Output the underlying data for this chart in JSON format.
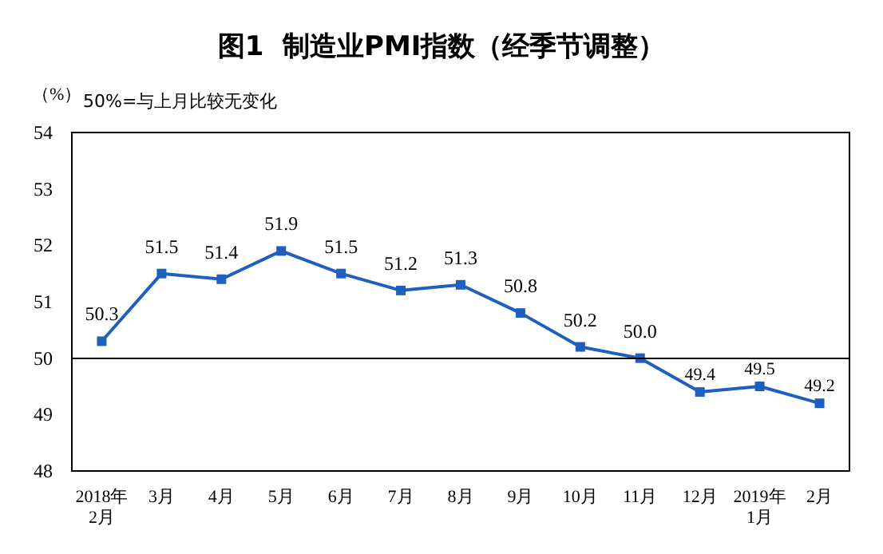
{
  "chart_data": {
    "type": "line",
    "title": "图1  制造业PMI指数（经季节调整）",
    "ylabel": "（%）",
    "annotations": [
      "50%=与上月比较无变化"
    ],
    "categories": [
      "2018年\n2月",
      "3月",
      "4月",
      "5月",
      "6月",
      "7月",
      "8月",
      "9月",
      "10月",
      "11月",
      "12月",
      "2019年\n1月",
      "2月"
    ],
    "series": [
      {
        "color": "#1f5fbf",
        "values": [
          50.3,
          51.5,
          51.4,
          51.9,
          51.5,
          51.2,
          51.3,
          50.8,
          50.2,
          50.0,
          49.4,
          49.5,
          49.2
        ],
        "value_labels": [
          "50.3",
          "51.5",
          "51.4",
          "51.9",
          "51.5",
          "51.2",
          "51.3",
          "50.8",
          "50.2",
          "50.0",
          "49.4",
          "49.5",
          "49.2"
        ]
      }
    ],
    "ylim": [
      48,
      54
    ],
    "yticks": [
      48,
      49,
      50,
      51,
      52,
      53,
      54
    ],
    "grid": false,
    "marker": "square",
    "line_style": "solid",
    "ref_lines": [
      {
        "axis": "y",
        "value": 50,
        "color": "#000000"
      }
    ]
  }
}
